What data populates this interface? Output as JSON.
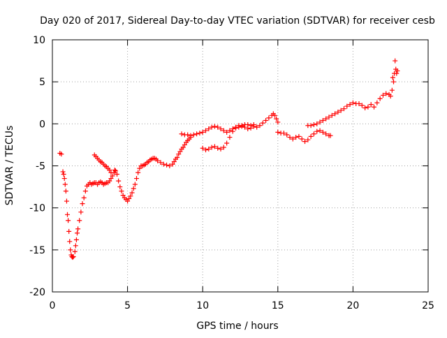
{
  "chart_data": {
    "type": "scatter",
    "title": "Day 020 of 2017, Sidereal Day-to-day VTEC variation (SDTVAR) for receiver cesb",
    "xlabel": "GPS time / hours",
    "ylabel": "SDTVAR / TECUs",
    "xlim": [
      0,
      25
    ],
    "ylim": [
      -20,
      10
    ],
    "xticks": [
      0,
      5,
      10,
      15,
      20,
      25
    ],
    "yticks": [
      -20,
      -15,
      -10,
      -5,
      0,
      5,
      10
    ],
    "grid": true,
    "marker": "+",
    "color": "#ff0000",
    "series": [
      {
        "points": [
          [
            0.5,
            -3.5
          ],
          [
            0.6,
            -3.6
          ],
          [
            0.7,
            -5.7
          ],
          [
            0.75,
            -6.0
          ],
          [
            0.8,
            -6.5
          ],
          [
            0.85,
            -7.2
          ],
          [
            0.9,
            -8.0
          ],
          [
            0.95,
            -9.2
          ],
          [
            1.0,
            -10.8
          ],
          [
            1.05,
            -11.5
          ],
          [
            1.1,
            -12.8
          ],
          [
            1.15,
            -14.0
          ],
          [
            1.2,
            -15.0
          ],
          [
            1.25,
            -15.6
          ],
          [
            1.3,
            -15.8
          ],
          [
            1.35,
            -15.9
          ],
          [
            1.4,
            -15.8
          ],
          [
            1.5,
            -15.2
          ],
          [
            1.55,
            -14.5
          ],
          [
            1.6,
            -13.8
          ],
          [
            1.65,
            -13.0
          ],
          [
            1.7,
            -12.5
          ],
          [
            1.8,
            -11.5
          ],
          [
            1.9,
            -10.5
          ],
          [
            2.0,
            -9.5
          ],
          [
            2.1,
            -8.8
          ],
          [
            2.2,
            -8.0
          ],
          [
            2.3,
            -7.4
          ],
          [
            2.4,
            -7.2
          ],
          [
            2.5,
            -7.0
          ],
          [
            2.6,
            -7.2
          ],
          [
            2.7,
            -7.1
          ],
          [
            2.8,
            -7.0
          ],
          [
            2.9,
            -7.0
          ],
          [
            3.0,
            -7.2
          ],
          [
            3.1,
            -7.0
          ],
          [
            3.2,
            -6.9
          ],
          [
            3.3,
            -7.0
          ],
          [
            3.4,
            -7.2
          ],
          [
            3.5,
            -7.1
          ],
          [
            3.6,
            -7.0
          ],
          [
            3.7,
            -7.0
          ],
          [
            3.8,
            -6.8
          ],
          [
            3.9,
            -6.5
          ],
          [
            4.0,
            -6.2
          ],
          [
            4.1,
            -5.8
          ],
          [
            4.15,
            -5.5
          ],
          [
            2.8,
            -3.7
          ],
          [
            2.9,
            -3.9
          ],
          [
            3.0,
            -4.1
          ],
          [
            3.1,
            -4.3
          ],
          [
            3.2,
            -4.5
          ],
          [
            3.3,
            -4.6
          ],
          [
            3.4,
            -4.8
          ],
          [
            3.5,
            -5.0
          ],
          [
            3.6,
            -5.1
          ],
          [
            3.7,
            -5.3
          ],
          [
            3.8,
            -5.5
          ],
          [
            3.9,
            -5.8
          ],
          [
            4.2,
            -5.6
          ],
          [
            4.3,
            -6.0
          ],
          [
            4.4,
            -6.8
          ],
          [
            4.5,
            -7.5
          ],
          [
            4.6,
            -8.0
          ],
          [
            4.7,
            -8.5
          ],
          [
            4.8,
            -8.8
          ],
          [
            4.9,
            -9.0
          ],
          [
            5.0,
            -9.2
          ],
          [
            5.1,
            -8.9
          ],
          [
            5.2,
            -8.6
          ],
          [
            5.3,
            -8.2
          ],
          [
            5.4,
            -7.7
          ],
          [
            5.5,
            -7.2
          ],
          [
            5.6,
            -6.5
          ],
          [
            5.7,
            -5.8
          ],
          [
            5.8,
            -5.3
          ],
          [
            5.9,
            -5.0
          ],
          [
            6.0,
            -5.0
          ],
          [
            6.1,
            -4.9
          ],
          [
            6.2,
            -4.8
          ],
          [
            6.3,
            -4.6
          ],
          [
            6.4,
            -4.5
          ],
          [
            6.5,
            -4.3
          ],
          [
            6.6,
            -4.2
          ],
          [
            6.7,
            -4.1
          ],
          [
            6.8,
            -4.1
          ],
          [
            6.9,
            -4.2
          ],
          [
            7.0,
            -4.4
          ],
          [
            7.2,
            -4.6
          ],
          [
            7.4,
            -4.8
          ],
          [
            7.6,
            -4.9
          ],
          [
            7.8,
            -5.0
          ],
          [
            8.0,
            -4.8
          ],
          [
            8.1,
            -4.5
          ],
          [
            8.2,
            -4.2
          ],
          [
            8.3,
            -4.0
          ],
          [
            8.4,
            -3.6
          ],
          [
            8.5,
            -3.3
          ],
          [
            8.6,
            -3.0
          ],
          [
            8.7,
            -2.8
          ],
          [
            8.8,
            -2.5
          ],
          [
            8.9,
            -2.2
          ],
          [
            9.0,
            -2.0
          ],
          [
            9.1,
            -1.8
          ],
          [
            9.2,
            -1.6
          ],
          [
            8.6,
            -1.2
          ],
          [
            8.8,
            -1.3
          ],
          [
            9.0,
            -1.3
          ],
          [
            9.2,
            -1.4
          ],
          [
            9.4,
            -1.3
          ],
          [
            9.6,
            -1.2
          ],
          [
            9.8,
            -1.1
          ],
          [
            10.0,
            -1.0
          ],
          [
            10.2,
            -0.8
          ],
          [
            10.4,
            -0.6
          ],
          [
            10.6,
            -0.4
          ],
          [
            10.8,
            -0.3
          ],
          [
            11.0,
            -0.4
          ],
          [
            11.2,
            -0.6
          ],
          [
            11.4,
            -0.8
          ],
          [
            11.6,
            -1.0
          ],
          [
            11.8,
            -0.8
          ],
          [
            12.0,
            -0.6
          ],
          [
            12.2,
            -0.5
          ],
          [
            12.4,
            -0.4
          ],
          [
            12.6,
            -0.2
          ],
          [
            12.8,
            -0.1
          ],
          [
            13.0,
            -0.1
          ],
          [
            13.2,
            -0.2
          ],
          [
            13.4,
            -0.1
          ],
          [
            10.0,
            -2.9
          ],
          [
            10.2,
            -3.1
          ],
          [
            10.4,
            -3.0
          ],
          [
            10.6,
            -2.8
          ],
          [
            10.8,
            -2.7
          ],
          [
            11.0,
            -2.9
          ],
          [
            11.2,
            -3.0
          ],
          [
            11.4,
            -2.8
          ],
          [
            11.6,
            -2.3
          ],
          [
            11.8,
            -1.6
          ],
          [
            12.0,
            -0.9
          ],
          [
            12.2,
            -0.4
          ],
          [
            12.4,
            -0.2
          ],
          [
            12.6,
            -0.3
          ],
          [
            12.8,
            -0.4
          ],
          [
            13.0,
            -0.6
          ],
          [
            13.2,
            -0.5
          ],
          [
            13.4,
            -0.3
          ],
          [
            13.6,
            -0.4
          ],
          [
            13.8,
            -0.2
          ],
          [
            14.0,
            0.1
          ],
          [
            14.2,
            0.4
          ],
          [
            14.4,
            0.7
          ],
          [
            14.6,
            1.0
          ],
          [
            14.7,
            1.2
          ],
          [
            14.8,
            1.0
          ],
          [
            14.9,
            0.6
          ],
          [
            15.0,
            0.2
          ],
          [
            15.0,
            -1.0
          ],
          [
            15.2,
            -1.1
          ],
          [
            15.4,
            -1.1
          ],
          [
            15.6,
            -1.3
          ],
          [
            15.8,
            -1.6
          ],
          [
            16.0,
            -1.8
          ],
          [
            16.2,
            -1.6
          ],
          [
            16.4,
            -1.5
          ],
          [
            16.6,
            -1.8
          ],
          [
            16.8,
            -2.1
          ],
          [
            17.0,
            -1.9
          ],
          [
            17.2,
            -1.5
          ],
          [
            17.4,
            -1.2
          ],
          [
            17.6,
            -0.9
          ],
          [
            17.8,
            -0.8
          ],
          [
            18.0,
            -1.0
          ],
          [
            18.2,
            -1.2
          ],
          [
            18.4,
            -1.4
          ],
          [
            18.5,
            -1.4
          ],
          [
            17.0,
            -0.2
          ],
          [
            17.2,
            -0.2
          ],
          [
            17.4,
            -0.1
          ],
          [
            17.6,
            0.0
          ],
          [
            17.8,
            0.2
          ],
          [
            18.0,
            0.4
          ],
          [
            18.2,
            0.6
          ],
          [
            18.4,
            0.8
          ],
          [
            18.6,
            1.0
          ],
          [
            18.8,
            1.2
          ],
          [
            19.0,
            1.4
          ],
          [
            19.2,
            1.6
          ],
          [
            19.4,
            1.8
          ],
          [
            19.6,
            2.1
          ],
          [
            19.8,
            2.3
          ],
          [
            20.0,
            2.5
          ],
          [
            20.2,
            2.4
          ],
          [
            20.4,
            2.4
          ],
          [
            20.6,
            2.2
          ],
          [
            20.8,
            1.9
          ],
          [
            21.0,
            2.0
          ],
          [
            21.2,
            2.3
          ],
          [
            21.4,
            2.0
          ],
          [
            21.6,
            2.5
          ],
          [
            21.8,
            3.0
          ],
          [
            22.0,
            3.4
          ],
          [
            22.2,
            3.6
          ],
          [
            22.4,
            3.5
          ],
          [
            22.5,
            3.3
          ],
          [
            22.6,
            4.0
          ],
          [
            22.65,
            5.5
          ],
          [
            22.7,
            5.0
          ],
          [
            22.75,
            6.0
          ],
          [
            22.8,
            7.5
          ],
          [
            22.85,
            6.5
          ],
          [
            22.9,
            6.0
          ],
          [
            22.95,
            6.3
          ]
        ]
      }
    ]
  }
}
